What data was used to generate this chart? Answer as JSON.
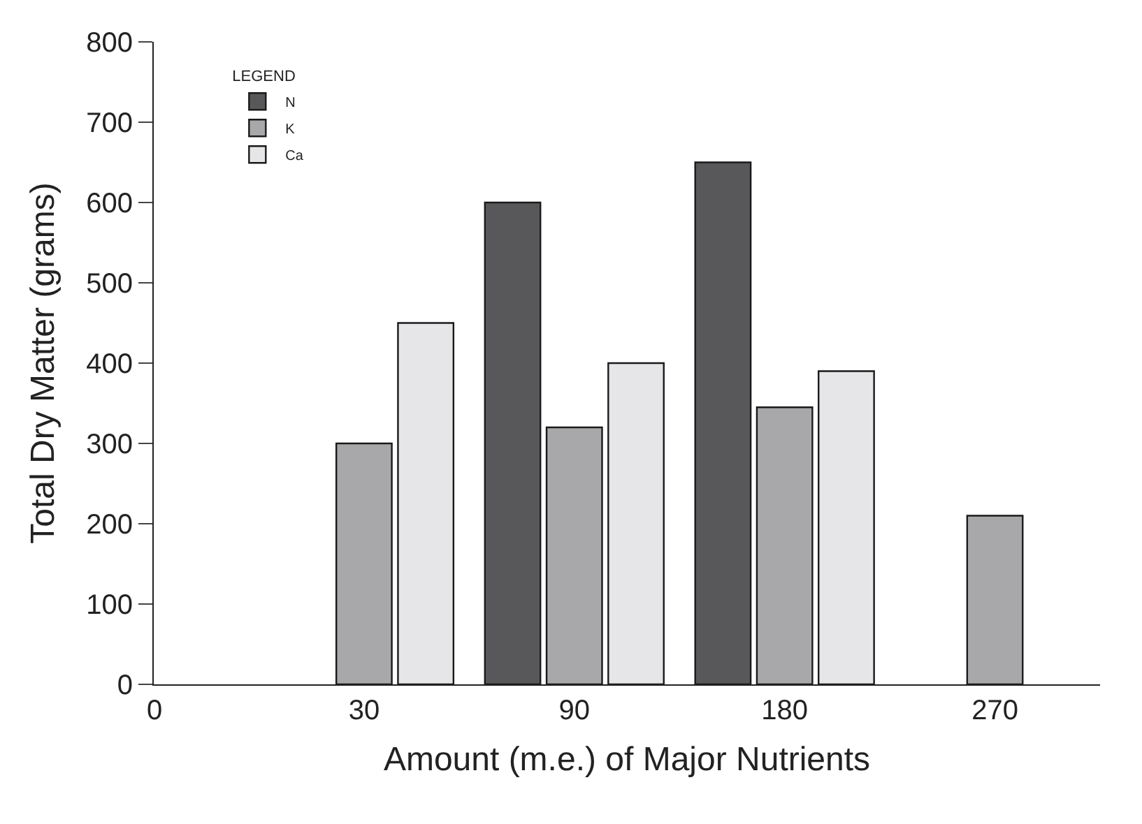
{
  "chart_data": {
    "type": "bar",
    "xlabel": "Amount (m.e.) of Major Nutrients",
    "ylabel": "Total Dry Matter (grams)",
    "legend_title": "LEGEND",
    "categories": [
      "30",
      "90",
      "180",
      "270"
    ],
    "series": [
      {
        "name": "N",
        "color": "#58585a",
        "values": [
          null,
          600,
          650,
          null
        ]
      },
      {
        "name": "K",
        "color": "#a8a8aa",
        "values": [
          300,
          320,
          345,
          210
        ]
      },
      {
        "name": "Ca",
        "color": "#e6e6e8",
        "values": [
          450,
          400,
          390,
          null
        ]
      }
    ],
    "ylim": [
      0,
      800
    ],
    "yticks": [
      0,
      100,
      200,
      300,
      400,
      500,
      600,
      700,
      800
    ],
    "annotations": [
      "0"
    ],
    "legend": "top left"
  }
}
